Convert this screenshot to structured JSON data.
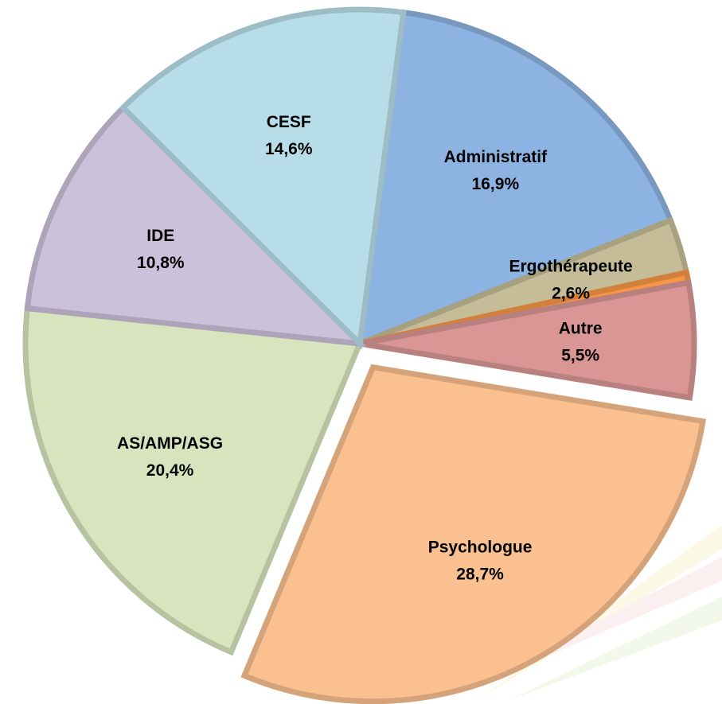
{
  "chart_data": {
    "type": "pie",
    "categories": [
      "Administratif",
      "Ergothérapeute",
      null,
      "Autre",
      "Psychologue",
      "AS/AMP/ASG",
      "IDE",
      "CESF"
    ],
    "values": [
      16.9,
      2.6,
      0.5,
      5.5,
      28.7,
      20.4,
      10.8,
      14.6
    ],
    "value_labels": [
      "16,9%",
      "2,6%",
      null,
      "5,5%",
      "28,7%",
      "20,4%",
      "10,8%",
      "14,6%"
    ],
    "colors": [
      "#8db3e2",
      "#c4bd97",
      "#f79646",
      "#d99694",
      "#fac08f",
      "#d7e4bd",
      "#ccc1da",
      "#b7dee8"
    ],
    "explode": [
      false,
      false,
      false,
      false,
      true,
      false,
      false,
      false
    ]
  }
}
